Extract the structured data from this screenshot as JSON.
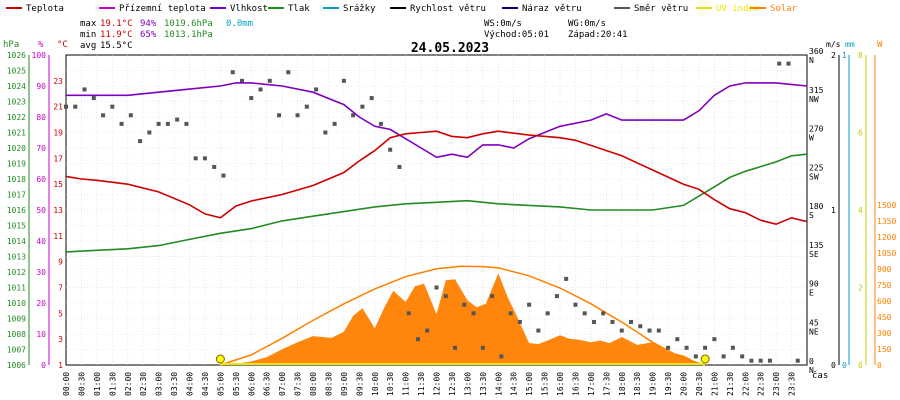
{
  "chart_data": {
    "type": "line",
    "title": "24.05.2023",
    "legend": [
      {
        "label": "Teplota",
        "color": "#cc0000"
      },
      {
        "label": "Přízemní teplota",
        "color": "#cc00cc"
      },
      {
        "label": "Vlhkost",
        "color": "#8000c0"
      },
      {
        "label": "Tlak",
        "color": "#228b22"
      },
      {
        "label": "Srážky",
        "color": "#00a0c0"
      },
      {
        "label": "Rychlost větru",
        "color": "#000000"
      },
      {
        "label": "Náraz větru",
        "color": "#000080"
      },
      {
        "label": "Směr větru",
        "color": "#555555"
      },
      {
        "label": "UV index",
        "color": "#e8e800"
      },
      {
        "label": "Solar",
        "color": "#ff8000"
      }
    ],
    "stats": {
      "max_label": "max",
      "max_temp": "19.1°C",
      "max_hum": "94%",
      "max_press": "1019.6hPa",
      "rain": "0.0mm",
      "min_label": "min",
      "min_temp": "11.9°C",
      "min_hum": "65%",
      "min_press": "1013.1hPa",
      "avg_label": "avg",
      "avg_temp": "15.5°C",
      "ws": "WS:0m/s",
      "wg": "WG:0m/s",
      "sunrise": "Východ:05:01",
      "sunset": "Západ:20:41"
    },
    "axes": {
      "hpa": {
        "unit": "hPa",
        "color": "#228b22",
        "min": 1006,
        "max": 1026,
        "ticks": [
          1006,
          1007,
          1008,
          1009,
          1010,
          1011,
          1012,
          1013,
          1014,
          1015,
          1016,
          1017,
          1018,
          1019,
          1020,
          1021,
          1022,
          1023,
          1024,
          1025,
          1026
        ]
      },
      "percent": {
        "unit": "%",
        "color": "#cc00cc",
        "min": 0,
        "max": 100,
        "ticks": [
          0,
          10,
          20,
          30,
          40,
          50,
          60,
          70,
          80,
          90,
          100
        ]
      },
      "celsius": {
        "unit": "°C",
        "color": "#cc0000",
        "min": 1,
        "max": 25,
        "ticks": [
          1,
          3,
          5,
          7,
          9,
          11,
          13,
          15,
          17,
          19,
          21,
          23
        ]
      },
      "direction": {
        "min": 0,
        "max": 360,
        "ticks": [
          {
            "v": 0,
            "deg": "0",
            "card": "N"
          },
          {
            "v": 45,
            "deg": "45",
            "card": "NE"
          },
          {
            "v": 90,
            "deg": "90",
            "card": "E"
          },
          {
            "v": 135,
            "deg": "135",
            "card": "SE"
          },
          {
            "v": 180,
            "deg": "180",
            "card": "S"
          },
          {
            "v": 225,
            "deg": "225",
            "card": "SW"
          },
          {
            "v": 270,
            "deg": "270",
            "card": "W"
          },
          {
            "v": 315,
            "deg": "315",
            "card": "NW"
          },
          {
            "v": 360,
            "deg": "360",
            "card": "N"
          }
        ]
      },
      "wind": {
        "unit": "m/s",
        "color": "#000000",
        "min": 0,
        "max": 2,
        "ticks": [
          0,
          1,
          2
        ]
      },
      "rain": {
        "unit": "mm",
        "color": "#00a0c0",
        "min": 0,
        "max": 1,
        "ticks": [
          0,
          1
        ]
      },
      "uv": {
        "color": "#c8c800",
        "min": 0,
        "max": 8,
        "ticks": [
          0,
          2,
          4,
          6,
          8
        ]
      },
      "solar": {
        "unit": "W",
        "color": "#ff8000",
        "min": 0,
        "max": 1500,
        "ticks": [
          0,
          150,
          300,
          450,
          600,
          750,
          900,
          1050,
          1200,
          1350,
          1500
        ]
      },
      "time": {
        "unit": "čas",
        "ticks": [
          "00:00",
          "00:30",
          "01:00",
          "01:30",
          "02:00",
          "02:30",
          "03:00",
          "03:30",
          "04:00",
          "04:30",
          "05:00",
          "05:30",
          "06:00",
          "06:30",
          "07:00",
          "07:30",
          "08:00",
          "08:30",
          "09:00",
          "09:30",
          "10:00",
          "10:30",
          "11:00",
          "11:30",
          "12:00",
          "12:30",
          "13:00",
          "13:30",
          "14:00",
          "14:30",
          "15:00",
          "15:30",
          "16:00",
          "16:30",
          "17:00",
          "17:30",
          "18:00",
          "18:30",
          "19:00",
          "19:30",
          "20:00",
          "20:30",
          "21:00",
          "21:30",
          "22:00",
          "22:30",
          "23:00",
          "23:30"
        ]
      }
    },
    "series": {
      "temperature": {
        "color": "#cc0000",
        "x": [
          0,
          0.5,
          1,
          2,
          3,
          4,
          4.5,
          5,
          5.5,
          6,
          7,
          8,
          9,
          9.5,
          10,
          10.5,
          11,
          11.5,
          12,
          12.5,
          13,
          13.5,
          14,
          15,
          16,
          16.5,
          17,
          18,
          19,
          20,
          20.5,
          21,
          21.5,
          22,
          22.5,
          23,
          23.5,
          24
        ],
        "y": [
          15.6,
          15.4,
          15.3,
          15.0,
          14.4,
          13.4,
          12.7,
          12.4,
          13.3,
          13.7,
          14.2,
          14.9,
          15.9,
          16.8,
          17.6,
          18.6,
          18.9,
          19.0,
          19.1,
          18.7,
          18.6,
          18.9,
          19.1,
          18.8,
          18.6,
          18.4,
          18.0,
          17.2,
          16.1,
          15.0,
          14.6,
          13.8,
          13.1,
          12.8,
          12.2,
          11.9,
          12.4,
          12.1
        ]
      },
      "humidity": {
        "color": "#8000c0",
        "x": [
          0,
          1,
          2,
          3,
          4,
          5,
          5.5,
          6,
          7,
          8,
          9,
          9.5,
          10,
          10.5,
          11,
          11.5,
          12,
          12.5,
          13,
          13.5,
          14,
          14.5,
          15,
          16,
          17,
          17.5,
          18,
          19,
          20,
          20.5,
          21,
          21.5,
          22,
          23,
          24
        ],
        "y": [
          87,
          87,
          87,
          88,
          89,
          90,
          91,
          91,
          90,
          88,
          84,
          80,
          77,
          76,
          73,
          70,
          67,
          68,
          67,
          71,
          71,
          70,
          73,
          77,
          79,
          81,
          79,
          79,
          79,
          82,
          87,
          90,
          91,
          91,
          90
        ]
      },
      "pressure": {
        "color": "#228b22",
        "x": [
          0,
          1,
          2,
          3,
          4,
          5,
          6,
          7,
          8,
          9,
          10,
          11,
          12,
          13,
          14,
          15,
          16,
          17,
          18,
          19,
          20,
          21,
          21.5,
          22,
          22.5,
          23,
          23.5,
          24
        ],
        "y": [
          1013.3,
          1013.4,
          1013.5,
          1013.7,
          1014.1,
          1014.5,
          1014.8,
          1015.3,
          1015.6,
          1015.9,
          1016.2,
          1016.4,
          1016.5,
          1016.6,
          1016.4,
          1016.3,
          1016.2,
          1016.0,
          1016.0,
          1016.0,
          1016.3,
          1017.5,
          1018.1,
          1018.5,
          1018.8,
          1019.1,
          1019.5,
          1019.6
        ]
      },
      "solar_radiation": {
        "color": "#ff8000",
        "x": [
          4.9,
          5.5,
          6,
          6.5,
          7,
          7.5,
          8,
          8.3,
          8.6,
          9,
          9.3,
          9.6,
          10,
          10.3,
          10.6,
          11,
          11.3,
          11.6,
          12,
          12.3,
          12.6,
          13,
          13.3,
          13.6,
          14,
          14.3,
          14.6,
          15,
          15.3,
          15.6,
          16,
          16.3,
          16.6,
          17,
          17.3,
          17.6,
          18,
          18.5,
          19,
          19.5,
          20,
          20.6
        ],
        "y": [
          0,
          15,
          40,
          90,
          180,
          260,
          330,
          320,
          310,
          380,
          560,
          650,
          420,
          650,
          850,
          720,
          900,
          930,
          580,
          970,
          980,
          740,
          660,
          700,
          1050,
          780,
          560,
          250,
          240,
          280,
          340,
          300,
          290,
          260,
          280,
          250,
          320,
          230,
          260,
          150,
          110,
          0
        ]
      },
      "solar_theoretical": {
        "color": "#ff8000",
        "x": [
          5.0,
          6,
          7,
          8,
          9,
          10,
          11,
          12,
          12.8,
          13.5,
          14,
          15,
          16,
          17,
          18,
          19,
          20,
          20.7
        ],
        "y": [
          0,
          115,
          305,
          510,
          700,
          870,
          1010,
          1100,
          1130,
          1125,
          1110,
          1020,
          880,
          700,
          490,
          260,
          70,
          0
        ]
      },
      "wind_direction": {
        "color": "#555555",
        "x": [
          0,
          0.3,
          0.6,
          0.9,
          1.2,
          1.5,
          1.8,
          2.1,
          2.4,
          2.7,
          3,
          3.3,
          3.6,
          3.9,
          4.2,
          4.5,
          4.8,
          5.1,
          5.4,
          5.7,
          6,
          6.3,
          6.6,
          6.9,
          7.2,
          7.5,
          7.8,
          8.1,
          8.4,
          8.7,
          9,
          9.3,
          9.6,
          9.9,
          10.2,
          10.5,
          10.8,
          11.1,
          11.4,
          11.7,
          12,
          12.3,
          12.6,
          12.9,
          13.2,
          13.5,
          13.8,
          14.1,
          14.4,
          14.7,
          15,
          15.3,
          15.6,
          15.9,
          16.2,
          16.5,
          16.8,
          17.1,
          17.4,
          17.7,
          18,
          18.3,
          18.6,
          18.9,
          19.2,
          19.5,
          19.8,
          20.1,
          20.4,
          20.7,
          21,
          21.3,
          21.6,
          21.9,
          22.2,
          22.5,
          22.8,
          23.1,
          23.4,
          23.7
        ],
        "y": [
          300,
          300,
          320,
          310,
          290,
          300,
          280,
          290,
          260,
          270,
          280,
          280,
          285,
          280,
          240,
          240,
          230,
          220,
          340,
          330,
          310,
          320,
          330,
          290,
          340,
          290,
          300,
          320,
          270,
          280,
          330,
          290,
          300,
          310,
          280,
          250,
          230,
          60,
          30,
          40,
          90,
          80,
          20,
          70,
          60,
          20,
          80,
          10,
          60,
          50,
          70,
          40,
          60,
          80,
          100,
          70,
          60,
          50,
          60,
          50,
          40,
          50,
          45,
          40,
          40,
          20,
          30,
          20,
          10,
          20,
          30,
          10,
          20,
          10,
          5,
          5,
          5,
          350,
          350,
          5
        ]
      },
      "uv_index": {
        "color": "#e8e800",
        "x": [
          5.0,
          20.7
        ],
        "y": [
          0,
          0
        ]
      }
    }
  }
}
